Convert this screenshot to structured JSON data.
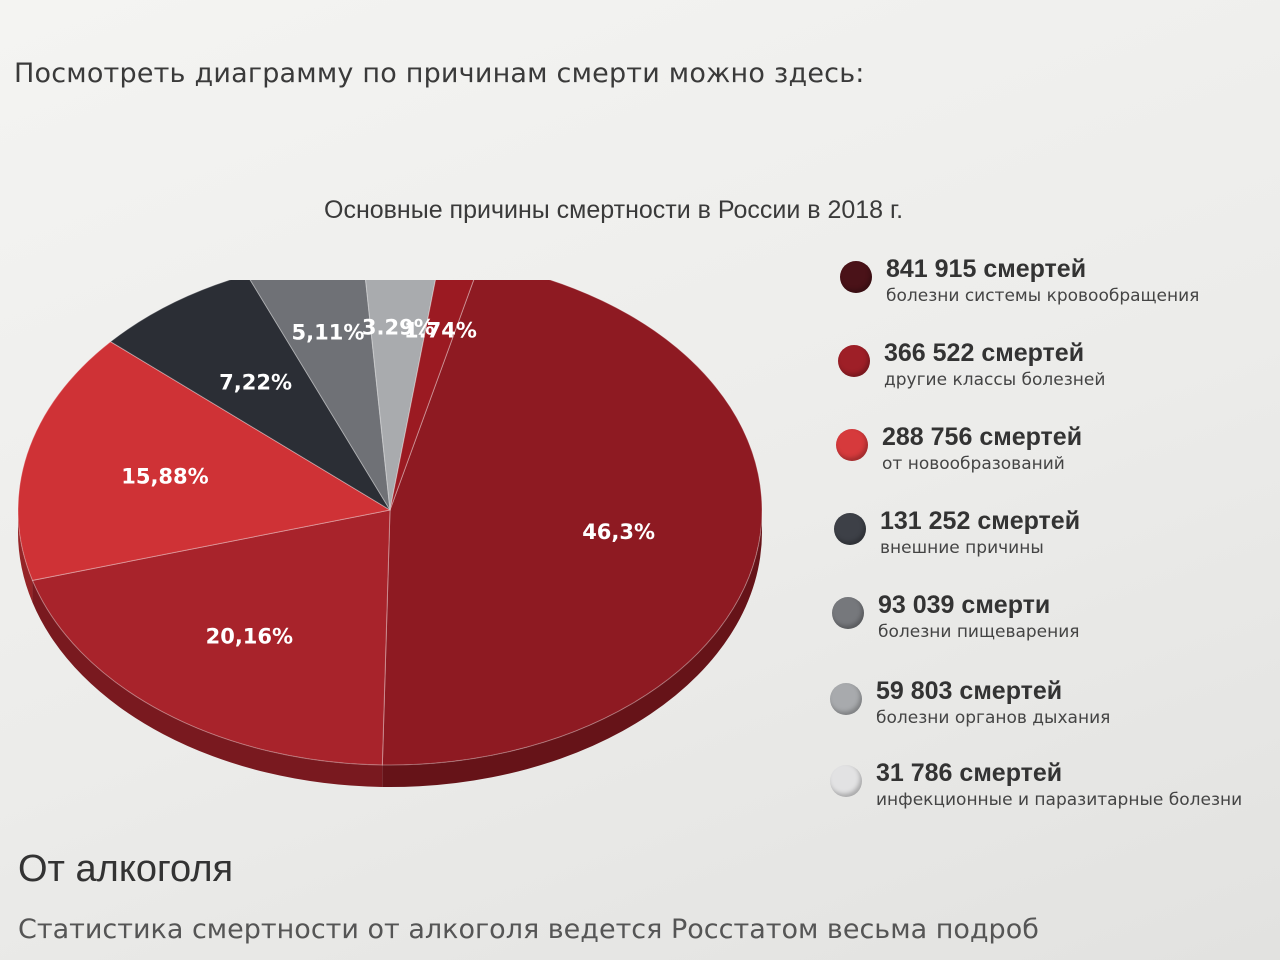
{
  "intro_text": "Посмотреть диаграмму по причинам смерти можно здесь:",
  "section": {
    "heading": "От алкоголя",
    "body": "Статистика смертности от алкоголя ведется Росстатом весьма подроб"
  },
  "chart_data": {
    "type": "pie",
    "title": "Основные причины смертности в России в 2018 г.",
    "legend_position": "right",
    "slices": [
      {
        "label": "болезни системы кровообращения",
        "value": 841915,
        "value_text": "841 915  смертей",
        "percent": 46.3,
        "percent_text": "46,3%",
        "color": "#8e1a22",
        "legend_color": "#4a1218"
      },
      {
        "label": "другие классы болезней",
        "value": 366522,
        "value_text": "366 522 смертей",
        "percent": 20.16,
        "percent_text": "20,16%",
        "color": "#a8232b",
        "legend_color": "#9e1f27"
      },
      {
        "label": "от новообразований",
        "value": 288756,
        "value_text": "288 756 смертей",
        "percent": 15.88,
        "percent_text": "15,88%",
        "color": "#cf3236",
        "legend_color": "#d63a3c"
      },
      {
        "label": "внешние причины",
        "value": 131252,
        "value_text": "131 252 смертей",
        "percent": 7.22,
        "percent_text": "7,22%",
        "color": "#2b2e35",
        "legend_color": "#3d4047"
      },
      {
        "label": "болезни пищеварения",
        "value": 93039,
        "value_text": "93 039 смерти",
        "percent": 5.11,
        "percent_text": "5,11%",
        "color": "#6f7176",
        "legend_color": "#76787c"
      },
      {
        "label": "болезни органов дыхания",
        "value": 59803,
        "value_text": "59 803 смертей",
        "percent": 3.29,
        "percent_text": "3.29%",
        "color": "#a9abae",
        "legend_color": "#a8aaad"
      },
      {
        "label": "инфекционные и паразитарные болезни",
        "value": 31786,
        "value_text": "31 786 смертей",
        "percent": 1.74,
        "percent_text": "1.74%",
        "color": "#9b1a22",
        "legend_color": "#e2e2e3"
      }
    ]
  }
}
